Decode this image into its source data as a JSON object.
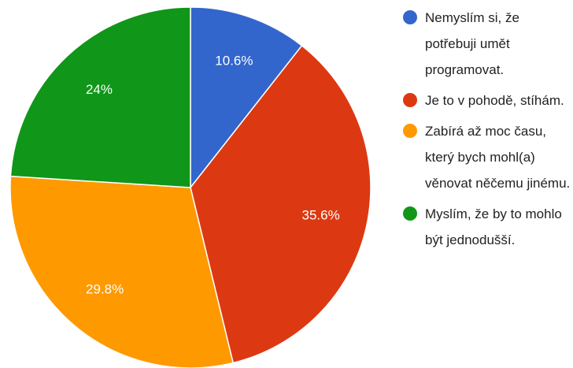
{
  "chart_data": {
    "type": "pie",
    "categories": [
      "Nemyslím si, že potřebuji umět programovat.",
      "Je to v pohodě, stíhám.",
      "Zabírá až moc času, který bych mohl(a) věnovat něčemu jinému.",
      "Myslím, že by to mohlo být jednodušší."
    ],
    "values": [
      10.6,
      35.6,
      29.8,
      24
    ],
    "value_labels": [
      "10.6%",
      "35.6%",
      "29.8%",
      "24%"
    ],
    "colors": [
      "#3366cc",
      "#dc3912",
      "#ff9900",
      "#109618"
    ]
  }
}
